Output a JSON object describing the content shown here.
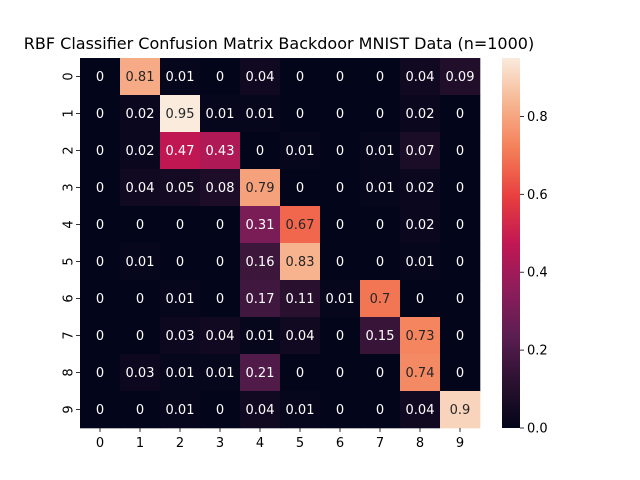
{
  "chart_data": {
    "type": "heatmap",
    "title": "RBF Classifier Confusion Matrix Backdoor MNIST Data (n=1000)",
    "xlabel": "",
    "ylabel": "",
    "x_tick_labels": [
      "0",
      "1",
      "2",
      "3",
      "4",
      "5",
      "6",
      "7",
      "8",
      "9"
    ],
    "y_tick_labels": [
      "0",
      "1",
      "2",
      "3",
      "4",
      "5",
      "6",
      "7",
      "8",
      "9"
    ],
    "values": [
      [
        0,
        0.81,
        0.01,
        0,
        0.04,
        0,
        0,
        0,
        0.04,
        0.09
      ],
      [
        0,
        0.02,
        0.95,
        0.01,
        0.01,
        0,
        0,
        0,
        0.02,
        0
      ],
      [
        0,
        0.02,
        0.47,
        0.43,
        0,
        0.01,
        0,
        0.01,
        0.07,
        0
      ],
      [
        0,
        0.04,
        0.05,
        0.08,
        0.79,
        0,
        0,
        0.01,
        0.02,
        0
      ],
      [
        0,
        0,
        0,
        0,
        0.31,
        0.67,
        0,
        0,
        0.02,
        0
      ],
      [
        0,
        0.01,
        0,
        0,
        0.16,
        0.83,
        0,
        0,
        0.01,
        0
      ],
      [
        0,
        0,
        0.01,
        0,
        0.17,
        0.11,
        0.01,
        0.7,
        0,
        0
      ],
      [
        0,
        0,
        0.03,
        0.04,
        0.01,
        0.04,
        0,
        0.15,
        0.73,
        0
      ],
      [
        0,
        0.03,
        0.01,
        0.01,
        0.21,
        0,
        0,
        0,
        0.74,
        0
      ],
      [
        0,
        0,
        0.01,
        0,
        0.04,
        0.01,
        0,
        0,
        0.04,
        0.9
      ]
    ],
    "value_labels": [
      [
        "0",
        "0.81",
        "0.01",
        "0",
        "0.04",
        "0",
        "0",
        "0",
        "0.04",
        "0.09"
      ],
      [
        "0",
        "0.02",
        "0.95",
        "0.01",
        "0.01",
        "0",
        "0",
        "0",
        "0.02",
        "0"
      ],
      [
        "0",
        "0.02",
        "0.47",
        "0.43",
        "0",
        "0.01",
        "0",
        "0.01",
        "0.07",
        "0"
      ],
      [
        "0",
        "0.04",
        "0.05",
        "0.08",
        "0.79",
        "0",
        "0",
        "0.01",
        "0.02",
        "0"
      ],
      [
        "0",
        "0",
        "0",
        "0",
        "0.31",
        "0.67",
        "0",
        "0",
        "0.02",
        "0"
      ],
      [
        "0",
        "0.01",
        "0",
        "0",
        "0.16",
        "0.83",
        "0",
        "0",
        "0.01",
        "0"
      ],
      [
        "0",
        "0",
        "0.01",
        "0",
        "0.17",
        "0.11",
        "0.01",
        "0.7",
        "0",
        "0"
      ],
      [
        "0",
        "0",
        "0.03",
        "0.04",
        "0.01",
        "0.04",
        "0",
        "0.15",
        "0.73",
        "0"
      ],
      [
        "0",
        "0.03",
        "0.01",
        "0.01",
        "0.21",
        "0",
        "0",
        "0",
        "0.74",
        "0"
      ],
      [
        "0",
        "0",
        "0.01",
        "0",
        "0.04",
        "0.01",
        "0",
        "0",
        "0.04",
        "0.9"
      ]
    ],
    "colorbar": {
      "range": [
        0,
        0.95
      ],
      "ticks": [
        0.0,
        0.2,
        0.4,
        0.6,
        0.8
      ],
      "tick_labels": [
        "0.0",
        "0.2",
        "0.4",
        "0.6",
        "0.8"
      ]
    },
    "colormap": [
      "#03051a",
      "#2b1130",
      "#5b1e51",
      "#8e1d5b",
      "#c21753",
      "#e83f3f",
      "#f47d57",
      "#f6b48f",
      "#faebdd"
    ],
    "label_text_dark": "#262626",
    "label_text_light": "#ffffff"
  }
}
